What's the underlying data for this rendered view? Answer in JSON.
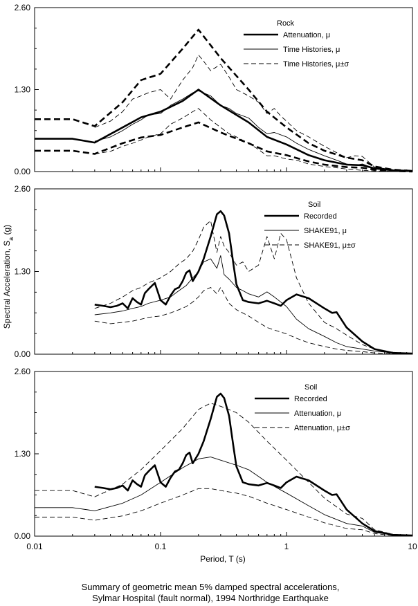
{
  "chart_data": [
    {
      "type": "line",
      "title": "Rock",
      "xscale": "log",
      "xlim": [
        0.01,
        10
      ],
      "ylim": [
        0,
        2.6
      ],
      "yticks": [
        "0.00",
        "1.30",
        "2.60"
      ],
      "legend": "top-right",
      "series": [
        {
          "name": "Attenuation, μ",
          "style": "thick-solid",
          "x": [
            0.01,
            0.02,
            0.03,
            0.05,
            0.07,
            0.1,
            0.15,
            0.2,
            0.3,
            0.5,
            0.7,
            1,
            1.5,
            2,
            3,
            4,
            5,
            7,
            10
          ],
          "y": [
            0.52,
            0.52,
            0.46,
            0.7,
            0.86,
            0.95,
            1.12,
            1.3,
            1.05,
            0.78,
            0.55,
            0.43,
            0.26,
            0.18,
            0.11,
            0.1,
            0.05,
            0.02,
            0.01
          ]
        },
        {
          "name": "Attenuation, μ±σ",
          "style": "thick-dashed",
          "x": [
            0.01,
            0.02,
            0.03,
            0.05,
            0.07,
            0.1,
            0.15,
            0.2,
            0.3,
            0.5,
            0.7,
            1,
            1.5,
            2,
            3,
            4,
            5,
            7,
            10
          ],
          "y": [
            0.83,
            0.83,
            0.72,
            1.1,
            1.45,
            1.55,
            1.95,
            2.25,
            1.8,
            1.3,
            0.95,
            0.7,
            0.45,
            0.33,
            0.22,
            0.18,
            0.08,
            0.03,
            0.01
          ]
        },
        {
          "name": "Attenuation, μ±σ",
          "style": "thick-dashed",
          "x": [
            0.01,
            0.02,
            0.03,
            0.05,
            0.07,
            0.1,
            0.15,
            0.2,
            0.3,
            0.5,
            0.7,
            1,
            1.5,
            2,
            3,
            4,
            5,
            7,
            10
          ],
          "y": [
            0.33,
            0.33,
            0.28,
            0.45,
            0.54,
            0.58,
            0.7,
            0.78,
            0.62,
            0.45,
            0.32,
            0.26,
            0.16,
            0.11,
            0.07,
            0.06,
            0.03,
            0.01,
            0
          ]
        },
        {
          "name": "Time Histories, μ",
          "style": "thin-solid",
          "x": [
            0.03,
            0.04,
            0.05,
            0.06,
            0.07,
            0.08,
            0.1,
            0.12,
            0.15,
            0.18,
            0.2,
            0.25,
            0.3,
            0.35,
            0.4,
            0.5,
            0.6,
            0.7,
            0.8,
            1,
            1.2,
            1.5,
            2,
            2.5,
            3,
            3.5,
            4,
            5,
            7,
            10
          ],
          "y": [
            0.48,
            0.55,
            0.65,
            0.75,
            0.82,
            0.9,
            0.92,
            1.05,
            1.15,
            1.25,
            1.28,
            1.2,
            1.05,
            1.0,
            0.92,
            0.85,
            0.7,
            0.6,
            0.62,
            0.55,
            0.45,
            0.35,
            0.25,
            0.18,
            0.12,
            0.1,
            0.12,
            0.05,
            0.02,
            0.01
          ]
        },
        {
          "name": "Time Histories, μ±σ",
          "style": "thin-dashed",
          "x": [
            0.03,
            0.04,
            0.05,
            0.06,
            0.07,
            0.08,
            0.1,
            0.12,
            0.15,
            0.18,
            0.2,
            0.22,
            0.25,
            0.3,
            0.35,
            0.4,
            0.5,
            0.6,
            0.7,
            0.8,
            0.9,
            1,
            1.2,
            1.5,
            2,
            2.5,
            3,
            3.5,
            4,
            5,
            7,
            10
          ],
          "y": [
            0.7,
            0.8,
            0.95,
            1.15,
            1.2,
            1.25,
            1.3,
            1.15,
            1.45,
            1.65,
            1.85,
            1.75,
            1.6,
            1.7,
            1.5,
            1.3,
            1.2,
            1.1,
            0.92,
            1.0,
            0.88,
            0.8,
            0.65,
            0.55,
            0.4,
            0.3,
            0.22,
            0.25,
            0.24,
            0.07,
            0.03,
            0.01
          ]
        },
        {
          "name": "Time Histories, μ±σ",
          "style": "thin-dashed",
          "x": [
            0.03,
            0.04,
            0.05,
            0.06,
            0.07,
            0.08,
            0.1,
            0.12,
            0.15,
            0.18,
            0.2,
            0.25,
            0.3,
            0.35,
            0.4,
            0.5,
            0.6,
            0.7,
            0.8,
            1,
            1.2,
            1.5,
            2,
            2.5,
            3,
            3.5,
            4,
            5,
            7,
            10
          ],
          "y": [
            0.28,
            0.32,
            0.4,
            0.45,
            0.5,
            0.55,
            0.6,
            0.75,
            0.85,
            0.95,
            1.0,
            0.82,
            0.7,
            0.6,
            0.55,
            0.45,
            0.35,
            0.25,
            0.25,
            0.2,
            0.18,
            0.12,
            0.08,
            0.06,
            0.04,
            0.03,
            0.02,
            0.01,
            0.005,
            0
          ]
        }
      ],
      "legend_entries": [
        {
          "label": "Attenuation, μ",
          "style": "thick-solid"
        },
        {
          "label": "Time Histories, μ",
          "style": "thin-solid"
        },
        {
          "label": "Time Histories, μ±σ",
          "style": "thin-dashed"
        }
      ]
    },
    {
      "type": "line",
      "title": "Soil",
      "xscale": "log",
      "xlim": [
        0.01,
        10
      ],
      "ylim": [
        0,
        2.6
      ],
      "yticks": [
        "0.00",
        "1.30",
        "2.60"
      ],
      "legend": "top-right",
      "series": [
        {
          "name": "Recorded",
          "style": "thick-solid",
          "x": [
            0.03,
            0.035,
            0.04,
            0.045,
            0.05,
            0.055,
            0.06,
            0.065,
            0.07,
            0.075,
            0.08,
            0.09,
            0.1,
            0.11,
            0.12,
            0.13,
            0.14,
            0.15,
            0.16,
            0.17,
            0.18,
            0.2,
            0.22,
            0.25,
            0.28,
            0.3,
            0.32,
            0.35,
            0.38,
            0.4,
            0.45,
            0.5,
            0.6,
            0.7,
            0.8,
            0.9,
            1,
            1.2,
            1.5,
            2,
            2.3,
            2.5,
            3,
            4,
            5,
            7,
            10
          ],
          "y": [
            0.78,
            0.76,
            0.74,
            0.76,
            0.8,
            0.72,
            0.88,
            0.82,
            0.78,
            0.96,
            1.02,
            1.12,
            0.85,
            0.78,
            0.92,
            1.02,
            1.05,
            1.15,
            1.28,
            1.32,
            1.15,
            1.3,
            1.5,
            1.85,
            2.2,
            2.25,
            2.18,
            1.9,
            1.4,
            1.1,
            0.85,
            0.82,
            0.8,
            0.84,
            0.8,
            0.76,
            0.85,
            0.94,
            0.88,
            0.72,
            0.65,
            0.66,
            0.42,
            0.2,
            0.08,
            0.02,
            0.01
          ]
        },
        {
          "name": "SHAKE91, μ",
          "style": "thin-solid",
          "x": [
            0.03,
            0.04,
            0.05,
            0.06,
            0.07,
            0.08,
            0.1,
            0.12,
            0.14,
            0.16,
            0.18,
            0.2,
            0.22,
            0.25,
            0.28,
            0.3,
            0.32,
            0.35,
            0.4,
            0.45,
            0.5,
            0.6,
            0.7,
            0.8,
            1,
            1.2,
            1.5,
            2,
            2.5,
            3,
            4,
            5,
            7,
            10
          ],
          "y": [
            0.62,
            0.65,
            0.68,
            0.72,
            0.75,
            0.8,
            0.85,
            0.9,
            1.0,
            1.08,
            1.2,
            1.3,
            1.45,
            1.5,
            1.35,
            1.55,
            1.25,
            1.18,
            1.05,
            1.0,
            0.95,
            0.9,
            0.98,
            0.9,
            0.75,
            0.55,
            0.4,
            0.28,
            0.18,
            0.12,
            0.08,
            0.05,
            0.02,
            0.01
          ]
        },
        {
          "name": "SHAKE91, μ±σ",
          "style": "thin-dashed",
          "x": [
            0.03,
            0.04,
            0.05,
            0.06,
            0.07,
            0.08,
            0.1,
            0.12,
            0.14,
            0.16,
            0.18,
            0.2,
            0.22,
            0.25,
            0.28,
            0.3,
            0.32,
            0.35,
            0.4,
            0.45,
            0.5,
            0.6,
            0.7,
            0.8,
            0.9,
            1,
            1.2,
            1.5,
            2,
            2.5,
            3,
            4,
            5,
            7,
            10
          ],
          "y": [
            0.72,
            0.8,
            0.9,
            1.0,
            1.05,
            1.12,
            1.2,
            1.3,
            1.42,
            1.5,
            1.62,
            1.8,
            2.0,
            2.1,
            1.6,
            1.85,
            1.7,
            1.6,
            1.4,
            1.45,
            1.3,
            1.4,
            1.85,
            1.5,
            1.9,
            1.8,
            1.2,
            0.8,
            0.5,
            0.4,
            0.3,
            0.15,
            0.08,
            0.03,
            0.01
          ]
        },
        {
          "name": "SHAKE91, μ±σ",
          "style": "thin-dashed",
          "x": [
            0.03,
            0.04,
            0.05,
            0.06,
            0.07,
            0.08,
            0.1,
            0.12,
            0.14,
            0.16,
            0.18,
            0.2,
            0.22,
            0.25,
            0.28,
            0.3,
            0.35,
            0.4,
            0.5,
            0.6,
            0.7,
            0.8,
            1,
            1.2,
            1.5,
            2,
            2.5,
            3,
            4,
            5,
            7,
            10
          ],
          "y": [
            0.52,
            0.48,
            0.5,
            0.52,
            0.55,
            0.58,
            0.6,
            0.65,
            0.7,
            0.75,
            0.82,
            0.9,
            1.0,
            1.05,
            0.95,
            1.05,
            0.8,
            0.7,
            0.6,
            0.5,
            0.42,
            0.38,
            0.32,
            0.25,
            0.18,
            0.12,
            0.08,
            0.06,
            0.04,
            0.02,
            0.01,
            0
          ]
        }
      ],
      "legend_entries": [
        {
          "label": "Recorded",
          "style": "thick-solid"
        },
        {
          "label": "SHAKE91, μ",
          "style": "thin-solid"
        },
        {
          "label": "SHAKE91, μ±σ",
          "style": "thin-dashed"
        }
      ]
    },
    {
      "type": "line",
      "title": "Soil",
      "xscale": "log",
      "xlim": [
        0.01,
        10
      ],
      "ylim": [
        0,
        2.6
      ],
      "yticks": [
        "0.00",
        "1.30",
        "2.60"
      ],
      "xticks": [
        "0.01",
        "0.1",
        "1",
        "10"
      ],
      "legend": "top-right",
      "series": [
        {
          "name": "Recorded",
          "style": "thick-solid",
          "x": [
            0.03,
            0.035,
            0.04,
            0.045,
            0.05,
            0.055,
            0.06,
            0.065,
            0.07,
            0.075,
            0.08,
            0.09,
            0.1,
            0.11,
            0.12,
            0.13,
            0.14,
            0.15,
            0.16,
            0.17,
            0.18,
            0.2,
            0.22,
            0.25,
            0.28,
            0.3,
            0.32,
            0.35,
            0.38,
            0.4,
            0.45,
            0.5,
            0.6,
            0.7,
            0.8,
            0.9,
            1,
            1.2,
            1.5,
            2,
            2.3,
            2.5,
            3,
            4,
            5,
            7,
            10
          ],
          "y": [
            0.78,
            0.76,
            0.74,
            0.76,
            0.8,
            0.72,
            0.88,
            0.82,
            0.78,
            0.96,
            1.02,
            1.12,
            0.85,
            0.78,
            0.92,
            1.02,
            1.05,
            1.15,
            1.28,
            1.32,
            1.15,
            1.3,
            1.5,
            1.85,
            2.2,
            2.25,
            2.18,
            1.9,
            1.4,
            1.1,
            0.85,
            0.82,
            0.8,
            0.84,
            0.8,
            0.76,
            0.85,
            0.94,
            0.88,
            0.72,
            0.65,
            0.66,
            0.42,
            0.2,
            0.08,
            0.02,
            0.01
          ]
        },
        {
          "name": "Attenuation, μ",
          "style": "thin-solid",
          "x": [
            0.01,
            0.02,
            0.03,
            0.05,
            0.07,
            0.1,
            0.15,
            0.2,
            0.25,
            0.3,
            0.4,
            0.5,
            0.7,
            1,
            1.5,
            2,
            3,
            4,
            5,
            7,
            10
          ],
          "y": [
            0.45,
            0.45,
            0.4,
            0.52,
            0.65,
            0.85,
            1.08,
            1.22,
            1.25,
            1.2,
            1.12,
            1.05,
            0.85,
            0.68,
            0.48,
            0.34,
            0.2,
            0.16,
            0.06,
            0.02,
            0.01
          ]
        },
        {
          "name": "Attenuation, μ±σ",
          "style": "thin-dashed",
          "x": [
            0.01,
            0.02,
            0.03,
            0.05,
            0.07,
            0.1,
            0.15,
            0.2,
            0.25,
            0.3,
            0.4,
            0.5,
            0.7,
            1,
            1.5,
            2,
            3,
            4,
            5,
            7,
            10
          ],
          "y": [
            0.72,
            0.72,
            0.62,
            0.82,
            1.05,
            1.35,
            1.7,
            2.0,
            2.1,
            2.05,
            1.95,
            1.8,
            1.5,
            1.2,
            0.85,
            0.6,
            0.35,
            0.28,
            0.1,
            0.03,
            0.01
          ]
        },
        {
          "name": "Attenuation, μ±σ",
          "style": "thin-dashed",
          "x": [
            0.01,
            0.02,
            0.03,
            0.05,
            0.07,
            0.1,
            0.15,
            0.2,
            0.25,
            0.3,
            0.4,
            0.5,
            0.7,
            1,
            1.5,
            2,
            3,
            4,
            5,
            7,
            10
          ],
          "y": [
            0.3,
            0.3,
            0.25,
            0.32,
            0.4,
            0.52,
            0.65,
            0.75,
            0.75,
            0.72,
            0.68,
            0.63,
            0.52,
            0.42,
            0.3,
            0.21,
            0.12,
            0.1,
            0.04,
            0.01,
            0
          ]
        }
      ],
      "legend_entries": [
        {
          "label": "Recorded",
          "style": "thick-solid"
        },
        {
          "label": "Attenuation, μ",
          "style": "thin-solid"
        },
        {
          "label": "Attenuation, μ±σ",
          "style": "thin-dashed"
        }
      ]
    }
  ],
  "figure": {
    "ylabel_main": "Spectral Acceleration, S",
    "ylabel_sub": "a",
    "ylabel_unit": " (g)",
    "xlabel": "Period, T (s)",
    "caption_line1": "Summary of geometric mean 5% damped spectral accelerations,",
    "caption_line2": "Sylmar Hospital (fault normal), 1994 Northridge Earthquake"
  }
}
